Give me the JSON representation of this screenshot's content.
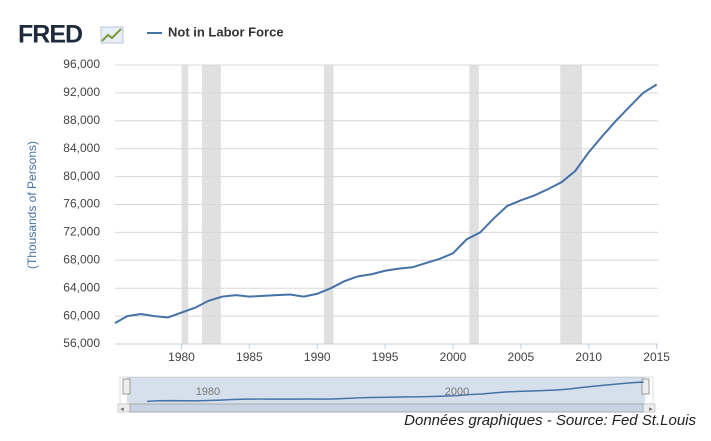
{
  "chart_data": {
    "type": "line",
    "brand": "FRED",
    "source_note": "Données graphiques - Source: Fed St.Louis",
    "y_label": "(Thousands of Persons)",
    "x": [
      1975.1,
      1976,
      1977,
      1978,
      1979,
      1980,
      1981,
      1982,
      1983,
      1984,
      1985,
      1986,
      1987,
      1988,
      1989,
      1990,
      1991,
      1992,
      1993,
      1994,
      1995,
      1996,
      1997,
      1998,
      1999,
      2000,
      2001,
      2002,
      2003,
      2004,
      2005,
      2006,
      2007,
      2008,
      2009,
      2010,
      2011,
      2012,
      2013,
      2014,
      2015
    ],
    "series": [
      {
        "name": "Not in Labor Force",
        "color": "#4572a7",
        "values": [
          59000,
          60000,
          60300,
          60000,
          59800,
          60500,
          61200,
          62200,
          62800,
          63000,
          62800,
          62900,
          63000,
          63100,
          62800,
          63200,
          64000,
          65000,
          65700,
          66000,
          66500,
          66800,
          67000,
          67600,
          68200,
          69000,
          71000,
          72000,
          74000,
          75800,
          76600,
          77300,
          78200,
          79200,
          80800,
          83500,
          85800,
          88000,
          90000,
          92000,
          93200
        ]
      }
    ],
    "recessions": [
      [
        1980.0,
        1980.5
      ],
      [
        1981.5,
        1982.9
      ],
      [
        1990.5,
        1991.2
      ],
      [
        2001.2,
        2001.9
      ],
      [
        2007.9,
        2009.5
      ]
    ],
    "xlim": [
      1975.1,
      2015.1
    ],
    "xticks": [
      1980,
      1985,
      1990,
      1995,
      2000,
      2005,
      2010,
      2015
    ],
    "ylim": [
      56000,
      96000
    ],
    "yticks": [
      {
        "value": 56000,
        "label": "56,000"
      },
      {
        "value": 60000,
        "label": "60,000"
      },
      {
        "value": 64000,
        "label": "64,000"
      },
      {
        "value": 68000,
        "label": "68,000"
      },
      {
        "value": 72000,
        "label": "72,000"
      },
      {
        "value": 76000,
        "label": "76,000"
      },
      {
        "value": 80000,
        "label": "80,000"
      },
      {
        "value": 84000,
        "label": "84,000"
      },
      {
        "value": 88000,
        "label": "88,000"
      },
      {
        "value": 92000,
        "label": "92,000"
      },
      {
        "value": 96000,
        "label": "96,000"
      }
    ],
    "grid": true,
    "navigator": {
      "xlim": [
        1973.5,
        2015.1
      ],
      "xticks": [
        1980,
        2000
      ]
    }
  }
}
